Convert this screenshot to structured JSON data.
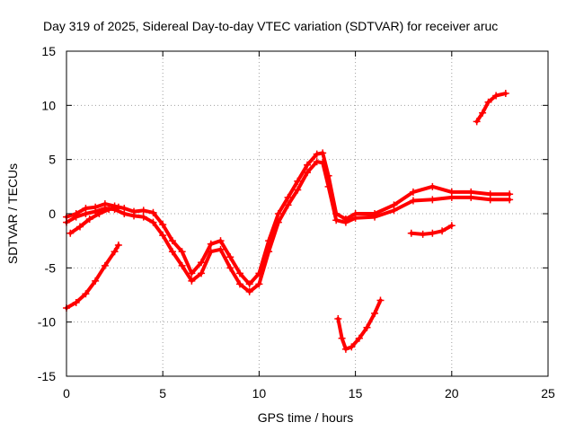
{
  "chart_data": {
    "type": "scatter",
    "title": "Day 319 of 2025, Sidereal Day-to-day VTEC variation (SDTVAR) for receiver aruc",
    "xlabel": "GPS time / hours",
    "ylabel": "SDTVAR / TECUs",
    "xlim": [
      0,
      25
    ],
    "ylim": [
      -15,
      15
    ],
    "x_ticks": [
      "0",
      "5",
      "10",
      "15",
      "20",
      "25"
    ],
    "y_ticks": [
      "15",
      "10",
      "5",
      "0",
      "-5",
      "-10",
      "-15"
    ],
    "x_tick_values": [
      0,
      5,
      10,
      15,
      20,
      25
    ],
    "y_tick_values": [
      15,
      10,
      5,
      0,
      -5,
      -10,
      -15
    ],
    "grid": true,
    "marker": "+",
    "color": "#ff0000",
    "series": [
      {
        "name": "track-main-upper",
        "x": [
          0.0,
          0.5,
          1.0,
          1.5,
          2.0,
          2.5,
          3.0,
          3.5,
          4.0,
          4.5,
          5.0,
          5.5,
          6.0,
          6.5,
          7.0,
          7.5,
          8.0,
          8.5,
          9.0,
          9.5,
          10.0,
          10.5,
          11.0,
          11.5,
          12.0,
          12.5,
          13.0,
          13.3,
          13.6,
          14.0,
          14.5,
          15.0,
          16.0,
          17.0,
          18.0,
          19.0,
          20.0,
          21.0,
          22.0,
          23.0
        ],
        "y": [
          -0.3,
          0.0,
          0.5,
          0.6,
          0.9,
          0.7,
          0.5,
          0.2,
          0.3,
          0.1,
          -1.0,
          -2.5,
          -3.5,
          -5.5,
          -4.5,
          -2.8,
          -2.5,
          -4.0,
          -5.5,
          -6.5,
          -5.5,
          -2.5,
          0.0,
          1.5,
          3.0,
          4.5,
          5.5,
          5.6,
          3.5,
          0.0,
          -0.5,
          0.0,
          0.0,
          0.8,
          2.0,
          2.5,
          2.0,
          2.0,
          1.8,
          1.8
        ]
      },
      {
        "name": "track-main-lower",
        "x": [
          0.0,
          0.5,
          1.0,
          1.5,
          2.0,
          2.5,
          3.0,
          3.5,
          4.0,
          4.5,
          5.0,
          5.5,
          6.0,
          6.5,
          7.0,
          7.5,
          8.0,
          8.5,
          9.0,
          9.5,
          10.0,
          10.5,
          11.0,
          11.5,
          12.0,
          12.5,
          13.0,
          13.3,
          13.6,
          14.0,
          14.5,
          15.0,
          16.0,
          17.0,
          18.0,
          19.0,
          20.0,
          21.0,
          22.0,
          23.0
        ],
        "y": [
          -0.8,
          -0.3,
          0.0,
          0.2,
          0.5,
          0.4,
          0.0,
          -0.2,
          -0.3,
          -0.8,
          -2.0,
          -3.5,
          -4.8,
          -6.2,
          -5.5,
          -3.5,
          -3.3,
          -5.0,
          -6.5,
          -7.2,
          -6.5,
          -3.5,
          -0.8,
          0.8,
          2.2,
          3.8,
          4.8,
          4.7,
          2.5,
          -0.6,
          -0.8,
          -0.4,
          -0.3,
          0.3,
          1.2,
          1.3,
          1.5,
          1.5,
          1.3,
          1.3
        ]
      },
      {
        "name": "track-early-rise",
        "x": [
          0.2,
          0.7,
          1.2,
          1.7,
          2.2,
          2.7
        ],
        "y": [
          -1.8,
          -1.2,
          -0.5,
          0.0,
          0.4,
          0.6
        ]
      },
      {
        "name": "track-early-low",
        "x": [
          0.0,
          0.5,
          1.0,
          1.5,
          2.0,
          2.5,
          2.7
        ],
        "y": [
          -8.7,
          -8.2,
          -7.4,
          -6.2,
          -4.8,
          -3.5,
          -2.9
        ]
      },
      {
        "name": "track-dip-14h",
        "x": [
          14.1,
          14.3,
          14.5,
          14.8,
          15.2,
          15.6,
          16.0,
          16.3
        ],
        "y": [
          -9.7,
          -11.5,
          -12.5,
          -12.3,
          -11.5,
          -10.5,
          -9.2,
          -8.0
        ]
      },
      {
        "name": "track-evening-low",
        "x": [
          17.9,
          18.5,
          19.0,
          19.5,
          20.0
        ],
        "y": [
          -1.8,
          -1.9,
          -1.8,
          -1.6,
          -1.1
        ]
      },
      {
        "name": "track-late-high",
        "x": [
          21.3,
          21.6,
          21.9,
          22.3,
          22.8
        ],
        "y": [
          8.5,
          9.3,
          10.3,
          10.9,
          11.1
        ]
      }
    ]
  }
}
